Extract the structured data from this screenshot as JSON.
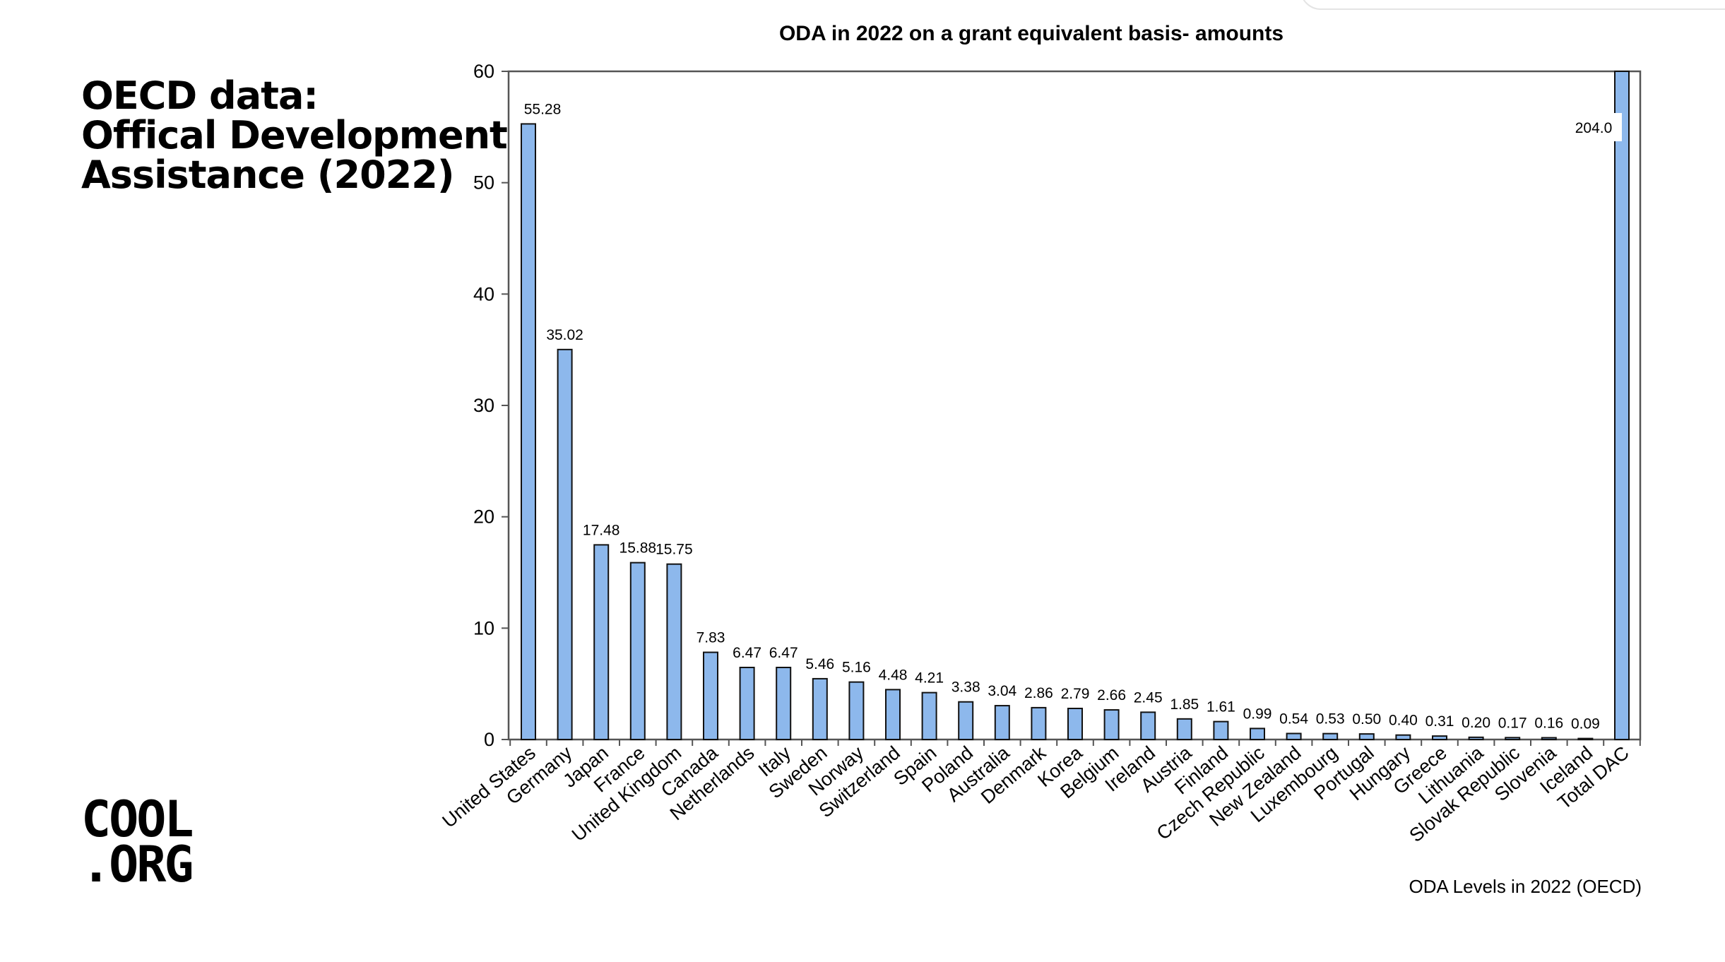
{
  "slide": {
    "title_lines": [
      "OECD data:",
      "Offical Development",
      "Assistance (2022)"
    ],
    "logo_lines": [
      "COOL",
      ".ORG"
    ],
    "source_note": "ODA Levels in 2022 (OECD)"
  },
  "chart_data": {
    "type": "bar",
    "title": "ODA in 2022 on a grant equivalent basis- amounts",
    "xlabel": "",
    "ylabel": "",
    "ylim": [
      0,
      60
    ],
    "yticks": [
      0,
      10,
      20,
      30,
      40,
      50,
      60
    ],
    "grid": false,
    "bar_color": "#8db8ec",
    "categories": [
      "United States",
      "Germany",
      "Japan",
      "France",
      "United Kingdom",
      "Canada",
      "Netherlands",
      "Italy",
      "Sweden",
      "Norway",
      "Switzerland",
      "Spain",
      "Poland",
      "Australia",
      "Denmark",
      "Korea",
      "Belgium",
      "Ireland",
      "Austria",
      "Finland",
      "Czech Republic",
      "New Zealand",
      "Luxembourg",
      "Portugal",
      "Hungary",
      "Greece",
      "Lithuania",
      "Slovak Republic",
      "Slovenia",
      "Iceland",
      "Total DAC"
    ],
    "values": [
      55.28,
      35.02,
      17.48,
      15.88,
      15.75,
      7.83,
      6.47,
      6.47,
      5.46,
      5.16,
      4.48,
      4.21,
      3.38,
      3.04,
      2.86,
      2.79,
      2.66,
      2.45,
      1.85,
      1.61,
      0.99,
      0.54,
      0.53,
      0.5,
      0.4,
      0.31,
      0.2,
      0.17,
      0.16,
      0.09,
      204.0
    ],
    "data_labels": [
      "55.28",
      "35.02",
      "17.48",
      "15.88",
      "15.75",
      "7.83",
      "6.47",
      "6.47",
      "5.46",
      "5.16",
      "4.48",
      "4.21",
      "3.38",
      "3.04",
      "2.86",
      "2.79",
      "2.66",
      "2.45",
      "1.85",
      "1.61",
      "0.99",
      "0.54",
      "0.53",
      "0.50",
      "0.40",
      "0.31",
      "0.20",
      "0.17",
      "0.16",
      "0.09",
      "204.0"
    ]
  }
}
